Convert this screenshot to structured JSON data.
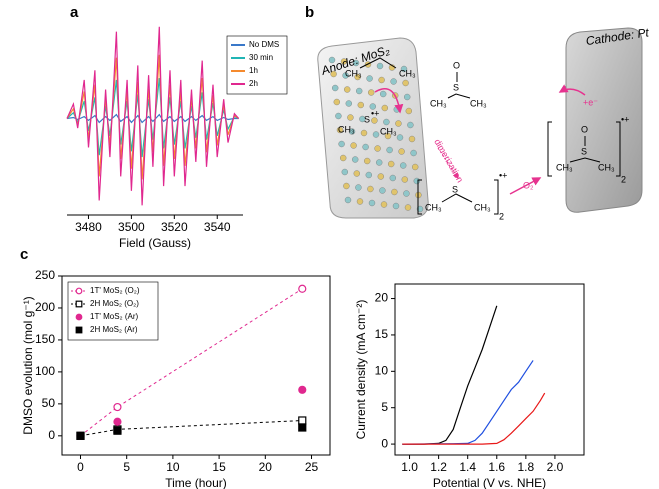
{
  "panel_labels": [
    "a",
    "b",
    "c"
  ],
  "chart_data": [
    {
      "type": "line",
      "xlabel": "Field (Gauss)",
      "xlim": [
        3470,
        3552
      ],
      "ylim": [
        -100,
        100
      ],
      "xticks": [
        3480,
        3500,
        3520,
        3540
      ],
      "legend": "upper right",
      "x": [
        3470,
        3473,
        3475,
        3478,
        3480,
        3483,
        3485,
        3488,
        3490,
        3493,
        3495,
        3498,
        3500,
        3503,
        3505,
        3508,
        3510,
        3513,
        3515,
        3518,
        3520,
        3523,
        3525,
        3528,
        3530,
        3533,
        3535,
        3538,
        3540,
        3543,
        3545,
        3548,
        3550
      ],
      "series": [
        {
          "name": "No DMS",
          "color": "#3a78c9",
          "values": [
            0,
            1,
            -1,
            2,
            -2,
            3,
            -4,
            2,
            -2,
            4,
            -3,
            2,
            -4,
            3,
            -4,
            2,
            -3,
            4,
            -3,
            2,
            -3,
            2,
            -3,
            2,
            -2,
            3,
            -2,
            2,
            -2,
            1,
            -1,
            0,
            0
          ]
        },
        {
          "name": "30 min",
          "color": "#20b5b5",
          "values": [
            0,
            6,
            -4,
            18,
            -13,
            22,
            -38,
            13,
            -18,
            40,
            -27,
            18,
            -34,
            25,
            -40,
            20,
            -22,
            42,
            -31,
            22,
            -27,
            18,
            -31,
            13,
            -20,
            27,
            -22,
            16,
            -18,
            9,
            -11,
            2,
            0
          ]
        },
        {
          "name": "1h",
          "color": "#f58a2e",
          "values": [
            0,
            10,
            -7,
            28,
            -21,
            35,
            -60,
            21,
            -28,
            63,
            -42,
            28,
            -52,
            38,
            -63,
            31,
            -35,
            66,
            -49,
            35,
            -42,
            28,
            -49,
            21,
            -31,
            42,
            -35,
            24,
            -28,
            14,
            -17,
            3,
            0
          ]
        },
        {
          "name": "2h",
          "color": "#e0288f",
          "values": [
            0,
            15,
            -10,
            40,
            -30,
            50,
            -85,
            30,
            -40,
            90,
            -60,
            40,
            -75,
            55,
            -90,
            45,
            -50,
            95,
            -70,
            50,
            -60,
            40,
            -70,
            30,
            -45,
            60,
            -50,
            35,
            -40,
            20,
            -25,
            5,
            0
          ]
        }
      ]
    },
    {
      "type": "scatter",
      "xlabel": "Time (hour)",
      "ylabel": "DMSO evolution (mol g⁻¹)",
      "xlim": [
        -2,
        27
      ],
      "ylim": [
        -30,
        250
      ],
      "xticks": [
        0,
        5,
        10,
        15,
        20,
        25
      ],
      "yticks": [
        0,
        50,
        100,
        150,
        200,
        250
      ],
      "legend": "upper left",
      "x": [
        0,
        4,
        24
      ],
      "series": [
        {
          "name": "1T' MoS₂ (O₂)",
          "color": "#e0288f",
          "marker": "circle",
          "filled": false,
          "dashed": true,
          "values": [
            0,
            45,
            230
          ]
        },
        {
          "name": "2H MoS₂ (O₂)",
          "color": "#000000",
          "marker": "square",
          "filled": false,
          "dashed": true,
          "values": [
            0,
            10,
            24
          ]
        },
        {
          "name": "1T' MoS₂ (Ar)",
          "color": "#e0288f",
          "marker": "circle",
          "filled": true,
          "dashed": false,
          "values": [
            0,
            22,
            72
          ]
        },
        {
          "name": "2H MoS₂ (Ar)",
          "color": "#000000",
          "marker": "square",
          "filled": true,
          "dashed": false,
          "values": [
            0,
            8,
            13
          ]
        }
      ]
    },
    {
      "type": "line",
      "xlabel": "Potential (V vs. NHE)",
      "ylabel": "Current density (mA cm⁻²)",
      "xlim": [
        0.9,
        2.2
      ],
      "ylim": [
        -1.5,
        22
      ],
      "xticks": [
        {
          "value": 1,
          "label": "1.0"
        },
        1.2,
        1.4,
        1.6,
        1.8,
        {
          "value": 2,
          "label": "2.0"
        }
      ],
      "yticks": [
        0,
        5,
        10,
        15,
        20
      ],
      "series": [
        {
          "color": "#000000",
          "x": [
            0.95,
            1.1,
            1.2,
            1.25,
            1.3,
            1.35,
            1.4,
            1.45,
            1.5,
            1.55,
            1.6
          ],
          "values": [
            0,
            0,
            0.1,
            0.5,
            2,
            5,
            8,
            10.5,
            13,
            16,
            19
          ]
        },
        {
          "color": "#1f4fe0",
          "x": [
            0.95,
            1.3,
            1.4,
            1.45,
            1.5,
            1.55,
            1.6,
            1.65,
            1.7,
            1.75,
            1.8,
            1.85
          ],
          "values": [
            0,
            0.05,
            0.1,
            0.5,
            1.5,
            3,
            4.5,
            6,
            7.5,
            8.5,
            10,
            11.5
          ]
        },
        {
          "color": "#e81818",
          "x": [
            0.95,
            1.5,
            1.6,
            1.65,
            1.7,
            1.75,
            1.8,
            1.85,
            1.9,
            1.93
          ],
          "values": [
            0,
            0,
            0.1,
            0.6,
            1.5,
            2.5,
            3.5,
            4.5,
            6,
            7
          ]
        }
      ]
    }
  ],
  "diagram": {
    "texts": [
      "Anode: MoS₂",
      "Cathode: Pt",
      "CH₃",
      "CH₃",
      "S",
      "•+",
      "CH₃",
      "CH₃",
      "CH₃",
      "S",
      "CH₃",
      "2",
      "•+",
      "O",
      "S",
      "CH₃",
      "CH₃",
      "O",
      "S",
      "CH₃",
      "CH₃",
      "2",
      "•+",
      "dimerization",
      "O₂",
      "+e⁻"
    ]
  }
}
